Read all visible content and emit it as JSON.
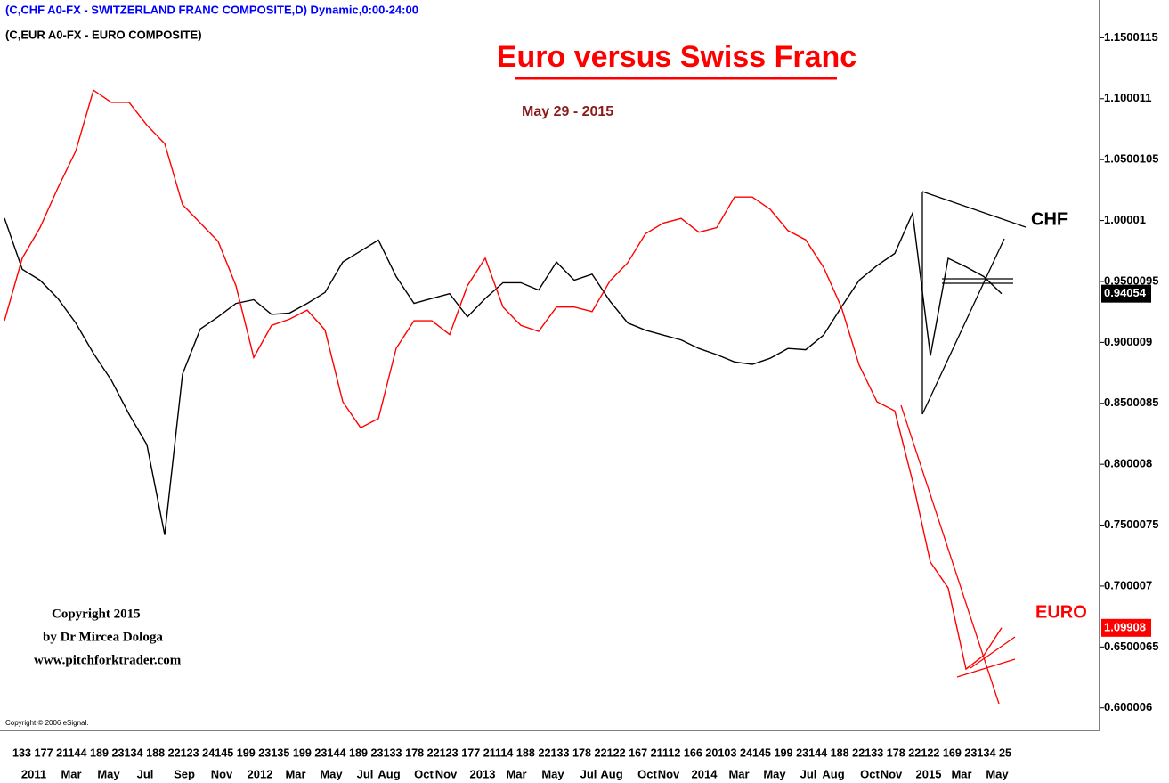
{
  "chart_data": {
    "type": "line",
    "header_lines": [
      "(C,CHF A0-FX - SWITZERLAND FRANC COMPOSITE,D) Dynamic,0:00-24:00",
      "(C,EUR A0-FX - EURO COMPOSITE)"
    ],
    "title": "Euro versus Swiss Franc",
    "subtitle": "May 29 - 2015",
    "copyright_block": [
      "Copyright 2015",
      "by Dr Mircea Dologa",
      "www.pitchforktrader.com"
    ],
    "software_credit": "Copyright © 2006 eSignal.",
    "x_tick_numbers": "133 177 21144 189 23134 188 22123  24145 199 23135 199 23144 189 23133 178 22123 177 21114 188 22133 178 22122 167 21112 166 20103  24145 199 23144 188 22133 178 22122 169 23134  25",
    "categories_bottom": [
      "2011",
      "Mar",
      "May",
      "Jul",
      "Sep",
      "Nov",
      "2012",
      "Mar",
      "May",
      "Jul",
      "Aug",
      "Oct",
      "Nov",
      "2013",
      "Mar",
      "May",
      "Jul",
      "Aug",
      "Oct",
      "Nov",
      "2014",
      "Mar",
      "May",
      "Jul",
      "Aug",
      "Oct",
      "Nov",
      "2015",
      "Mar",
      "May"
    ],
    "ylim": [
      0.583,
      1.181
    ],
    "yticks": [
      1.1500115,
      1.100011,
      1.0500105,
      1.00001,
      0.9500095,
      0.900009,
      0.8500085,
      0.800008,
      0.7500075,
      0.700007,
      0.6500065,
      0.600006
    ],
    "y2lim": [
      1.034,
      1.511
    ],
    "series": [
      {
        "name": "CHF",
        "color": "#000000",
        "last_label": "0.94054",
        "values": [
          1.002,
          0.96,
          0.951,
          0.936,
          0.916,
          0.891,
          0.869,
          0.841,
          0.816,
          0.742,
          0.874,
          0.911,
          0.921,
          0.932,
          0.935,
          0.923,
          0.924,
          0.932,
          0.941,
          0.966,
          0.975,
          0.984,
          0.954,
          0.932,
          0.936,
          0.94,
          0.921,
          0.936,
          0.949,
          0.949,
          0.943,
          0.966,
          0.951,
          0.956,
          0.934,
          0.916,
          0.91,
          0.906,
          0.902,
          0.895,
          0.89,
          0.884,
          0.882,
          0.887,
          0.895,
          0.894,
          0.906,
          0.929,
          0.951,
          0.963,
          0.973,
          1.006,
          0.889,
          0.969,
          0.962,
          0.954,
          0.94
        ]
      },
      {
        "name": "EURO",
        "color": "#ff0000",
        "axis": "y2",
        "last_label": "1.09908",
        "values": [
          1.301,
          1.342,
          1.362,
          1.388,
          1.412,
          1.452,
          1.444,
          1.444,
          1.429,
          1.417,
          1.377,
          1.365,
          1.353,
          1.324,
          1.277,
          1.298,
          1.302,
          1.308,
          1.295,
          1.248,
          1.231,
          1.237,
          1.283,
          1.301,
          1.301,
          1.292,
          1.324,
          1.342,
          1.31,
          1.298,
          1.294,
          1.31,
          1.31,
          1.307,
          1.327,
          1.339,
          1.358,
          1.365,
          1.368,
          1.359,
          1.362,
          1.382,
          1.382,
          1.374,
          1.36,
          1.354,
          1.336,
          1.31,
          1.272,
          1.248,
          1.242,
          1.196,
          1.143,
          1.126,
          1.073,
          1.082,
          1.1
        ]
      }
    ]
  }
}
